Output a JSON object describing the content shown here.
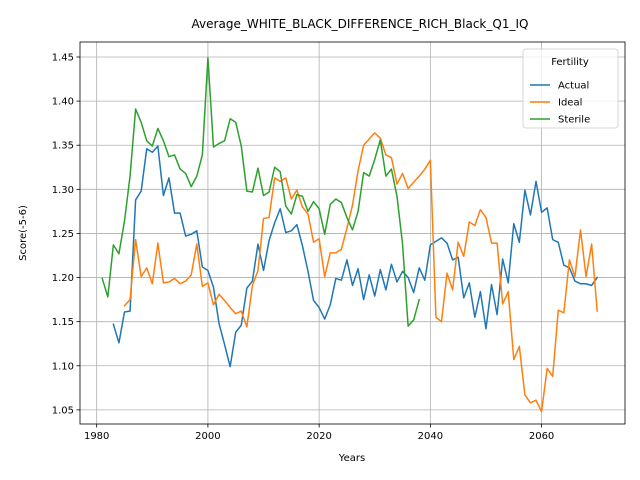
{
  "chart_data": {
    "type": "line",
    "title": "Average_WHITE_BLACK_DIFFERENCE_RICH_Black_Q1_IQ",
    "xlabel": "Years",
    "ylabel": "Score(-5-6)",
    "xlim": [
      1977,
      2075
    ],
    "ylim": [
      1.034,
      1.467
    ],
    "xticks": [
      1980,
      2000,
      2020,
      2040,
      2060
    ],
    "yticks": [
      1.05,
      1.1,
      1.15,
      1.2,
      1.25,
      1.3,
      1.35,
      1.4,
      1.45
    ],
    "ytick_labels": [
      "1.05",
      "1.10",
      "1.15",
      "1.20",
      "1.25",
      "1.30",
      "1.35",
      "1.40",
      "1.45"
    ],
    "grid": true,
    "legend": {
      "title": "Fertility",
      "placement": "top-right"
    },
    "series": [
      {
        "name": "Actual",
        "color": "#1f77b4",
        "x": [
          1983,
          1984,
          1985,
          1986,
          1987,
          1988,
          1989,
          1990,
          1991,
          1992,
          1993,
          1994,
          1995,
          1996,
          1997,
          1998,
          1999,
          2000,
          2001,
          2002,
          2003,
          2004,
          2005,
          2006,
          2007,
          2008,
          2009,
          2010,
          2011,
          2012,
          2013,
          2014,
          2015,
          2016,
          2017,
          2018,
          2019,
          2020,
          2021,
          2022,
          2023,
          2024,
          2025,
          2026,
          2027,
          2028,
          2029,
          2030,
          2031,
          2032,
          2033,
          2034,
          2035,
          2036,
          2037,
          2038,
          2039,
          2040,
          2041,
          2042,
          2043,
          2044,
          2045,
          2046,
          2047,
          2048,
          2049,
          2050,
          2051,
          2052,
          2053,
          2054,
          2055,
          2056,
          2057,
          2058,
          2059,
          2060,
          2061,
          2062,
          2063,
          2064,
          2065,
          2066,
          2067,
          2068,
          2069,
          2070
        ],
        "values": [
          1.147,
          1.126,
          1.161,
          1.162,
          1.288,
          1.298,
          1.346,
          1.342,
          1.349,
          1.293,
          1.313,
          1.273,
          1.273,
          1.247,
          1.249,
          1.253,
          1.212,
          1.208,
          1.189,
          1.148,
          1.124,
          1.099,
          1.138,
          1.146,
          1.188,
          1.196,
          1.238,
          1.208,
          1.242,
          1.262,
          1.278,
          1.251,
          1.253,
          1.26,
          1.236,
          1.207,
          1.174,
          1.166,
          1.153,
          1.169,
          1.199,
          1.197,
          1.22,
          1.191,
          1.21,
          1.175,
          1.203,
          1.179,
          1.209,
          1.186,
          1.215,
          1.195,
          1.207,
          1.2,
          1.183,
          1.211,
          1.197,
          1.237,
          1.241,
          1.245,
          1.239,
          1.22,
          1.223,
          1.177,
          1.194,
          1.155,
          1.184,
          1.142,
          1.192,
          1.158,
          1.221,
          1.194,
          1.261,
          1.24,
          1.299,
          1.271,
          1.309,
          1.274,
          1.279,
          1.243,
          1.24,
          1.214,
          1.211,
          1.196,
          1.193,
          1.193,
          1.191,
          1.2
        ]
      },
      {
        "name": "Ideal",
        "color": "#ff7f0e",
        "x": [
          1985,
          1986,
          1987,
          1988,
          1989,
          1990,
          1991,
          1992,
          1993,
          1994,
          1995,
          1996,
          1997,
          1998,
          1999,
          2000,
          2001,
          2002,
          2003,
          2004,
          2005,
          2006,
          2007,
          2008,
          2009,
          2010,
          2011,
          2012,
          2013,
          2014,
          2015,
          2016,
          2017,
          2018,
          2019,
          2020,
          2021,
          2022,
          2023,
          2024,
          2025,
          2026,
          2027,
          2028,
          2029,
          2030,
          2031,
          2032,
          2033,
          2034,
          2035,
          2036,
          2037,
          2038,
          2039,
          2040,
          2041,
          2042,
          2043,
          2044,
          2045,
          2046,
          2047,
          2048,
          2049,
          2050,
          2051,
          2052,
          2053,
          2054,
          2055,
          2056,
          2057,
          2058,
          2059,
          2060,
          2061,
          2062,
          2063,
          2064,
          2065,
          2066,
          2067,
          2068,
          2069,
          2070
        ],
        "values": [
          1.168,
          1.175,
          1.243,
          1.201,
          1.211,
          1.193,
          1.239,
          1.194,
          1.195,
          1.199,
          1.193,
          1.196,
          1.203,
          1.238,
          1.19,
          1.194,
          1.169,
          1.181,
          1.174,
          1.166,
          1.159,
          1.162,
          1.144,
          1.191,
          1.208,
          1.267,
          1.268,
          1.313,
          1.309,
          1.313,
          1.289,
          1.299,
          1.28,
          1.272,
          1.24,
          1.244,
          1.201,
          1.228,
          1.228,
          1.232,
          1.256,
          1.282,
          1.321,
          1.35,
          1.357,
          1.364,
          1.358,
          1.339,
          1.336,
          1.306,
          1.318,
          1.301,
          1.308,
          1.315,
          1.323,
          1.333,
          1.155,
          1.15,
          1.205,
          1.186,
          1.24,
          1.224,
          1.263,
          1.259,
          1.277,
          1.268,
          1.239,
          1.239,
          1.17,
          1.184,
          1.107,
          1.122,
          1.067,
          1.058,
          1.061,
          1.048,
          1.097,
          1.088,
          1.163,
          1.16,
          1.22,
          1.201,
          1.254,
          1.201,
          1.238,
          1.162
        ]
      },
      {
        "name": "Sterile",
        "color": "#2ca02c",
        "x": [
          1981,
          1982,
          1983,
          1984,
          1985,
          1986,
          1987,
          1988,
          1989,
          1990,
          1991,
          1992,
          1993,
          1994,
          1995,
          1996,
          1997,
          1998,
          1999,
          2000,
          2001,
          2002,
          2003,
          2004,
          2005,
          2006,
          2007,
          2008,
          2009,
          2010,
          2011,
          2012,
          2013,
          2014,
          2015,
          2016,
          2017,
          2018,
          2019,
          2020,
          2021,
          2022,
          2023,
          2024,
          2025,
          2026,
          2027,
          2028,
          2029,
          2030,
          2031,
          2032,
          2033,
          2034,
          2035,
          2036,
          2037,
          2038
        ],
        "values": [
          1.199,
          1.178,
          1.237,
          1.227,
          1.264,
          1.315,
          1.391,
          1.376,
          1.355,
          1.349,
          1.369,
          1.355,
          1.337,
          1.339,
          1.323,
          1.318,
          1.303,
          1.315,
          1.339,
          1.449,
          1.348,
          1.352,
          1.355,
          1.38,
          1.376,
          1.349,
          1.298,
          1.297,
          1.324,
          1.293,
          1.297,
          1.325,
          1.32,
          1.281,
          1.272,
          1.294,
          1.292,
          1.275,
          1.286,
          1.278,
          1.249,
          1.283,
          1.289,
          1.285,
          1.268,
          1.254,
          1.275,
          1.319,
          1.315,
          1.334,
          1.356,
          1.315,
          1.323,
          1.292,
          1.238,
          1.145,
          1.152,
          1.175
        ]
      }
    ]
  }
}
